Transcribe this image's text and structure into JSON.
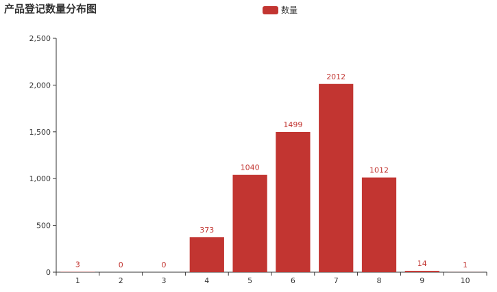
{
  "chart_data": {
    "type": "bar",
    "title": "产品登记数量分布图",
    "categories": [
      "1",
      "2",
      "3",
      "4",
      "5",
      "6",
      "7",
      "8",
      "9",
      "10"
    ],
    "series": [
      {
        "name": "数量",
        "values": [
          3,
          0,
          0,
          373,
          1040,
          1499,
          2012,
          1012,
          14,
          1
        ]
      }
    ],
    "y_ticks": [
      "0",
      "500",
      "1,000",
      "1,500",
      "2,000",
      "2,500"
    ],
    "ylim": [
      0,
      2500
    ],
    "xlabel": "",
    "ylabel": "",
    "legend_position": "top-center",
    "grid": false,
    "bar_color": "#c23531",
    "axis_color": "#333333",
    "label_color": "#c23531"
  }
}
